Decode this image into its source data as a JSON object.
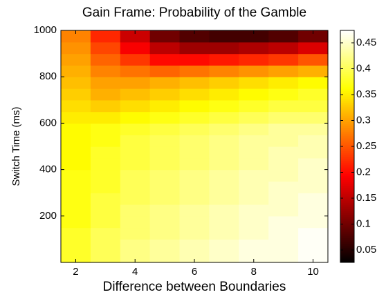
{
  "chart_data": {
    "type": "heatmap",
    "title": "Gain Frame: Probability of the Gamble",
    "x_label": "Difference between Boundaries",
    "y_label": "Switch Time (ms)",
    "colormap": "hot",
    "x": [
      2,
      3,
      4,
      5,
      6,
      7,
      8,
      9,
      10
    ],
    "y": [
      25,
      75,
      125,
      175,
      225,
      275,
      325,
      375,
      425,
      475,
      525,
      575,
      625,
      675,
      725,
      775,
      825,
      875,
      925,
      975
    ],
    "z": [
      [
        0.38,
        0.4,
        0.42,
        0.43,
        0.44,
        0.45,
        0.46,
        0.46,
        0.47
      ],
      [
        0.38,
        0.4,
        0.42,
        0.43,
        0.44,
        0.45,
        0.46,
        0.46,
        0.47
      ],
      [
        0.38,
        0.4,
        0.41,
        0.42,
        0.43,
        0.44,
        0.45,
        0.46,
        0.47
      ],
      [
        0.37,
        0.39,
        0.41,
        0.42,
        0.43,
        0.44,
        0.45,
        0.46,
        0.46
      ],
      [
        0.37,
        0.39,
        0.41,
        0.42,
        0.43,
        0.44,
        0.45,
        0.45,
        0.46
      ],
      [
        0.37,
        0.39,
        0.4,
        0.41,
        0.42,
        0.43,
        0.44,
        0.45,
        0.46
      ],
      [
        0.37,
        0.38,
        0.4,
        0.41,
        0.42,
        0.43,
        0.44,
        0.45,
        0.45
      ],
      [
        0.37,
        0.38,
        0.4,
        0.41,
        0.42,
        0.43,
        0.44,
        0.44,
        0.45
      ],
      [
        0.36,
        0.38,
        0.39,
        0.4,
        0.41,
        0.42,
        0.43,
        0.44,
        0.45
      ],
      [
        0.36,
        0.38,
        0.39,
        0.4,
        0.41,
        0.42,
        0.43,
        0.44,
        0.44
      ],
      [
        0.36,
        0.37,
        0.39,
        0.4,
        0.41,
        0.42,
        0.43,
        0.43,
        0.44
      ],
      [
        0.36,
        0.37,
        0.38,
        0.39,
        0.4,
        0.41,
        0.42,
        0.43,
        0.43
      ],
      [
        0.35,
        0.35,
        0.36,
        0.37,
        0.38,
        0.39,
        0.4,
        0.41,
        0.41
      ],
      [
        0.34,
        0.33,
        0.34,
        0.35,
        0.36,
        0.37,
        0.38,
        0.39,
        0.39
      ],
      [
        0.33,
        0.31,
        0.32,
        0.33,
        0.34,
        0.35,
        0.36,
        0.37,
        0.38
      ],
      [
        0.32,
        0.3,
        0.3,
        0.31,
        0.32,
        0.33,
        0.34,
        0.35,
        0.36
      ],
      [
        0.31,
        0.28,
        0.27,
        0.26,
        0.27,
        0.28,
        0.29,
        0.3,
        0.31
      ],
      [
        0.3,
        0.26,
        0.23,
        0.2,
        0.2,
        0.21,
        0.22,
        0.23,
        0.25
      ],
      [
        0.29,
        0.24,
        0.19,
        0.15,
        0.13,
        0.13,
        0.14,
        0.15,
        0.17
      ],
      [
        0.28,
        0.22,
        0.16,
        0.1,
        0.08,
        0.07,
        0.07,
        0.08,
        0.1
      ]
    ],
    "xlim": [
      1.5,
      10.5
    ],
    "xticks": [
      2,
      4,
      6,
      8,
      10
    ],
    "ylim": [
      0,
      1000
    ],
    "yticks": [
      200,
      400,
      600,
      800,
      1000
    ],
    "zlim": [
      0.026,
      0.474
    ],
    "zticks": [
      0.05,
      0.1,
      0.15,
      0.2,
      0.25,
      0.3,
      0.35,
      0.4,
      0.45
    ]
  }
}
